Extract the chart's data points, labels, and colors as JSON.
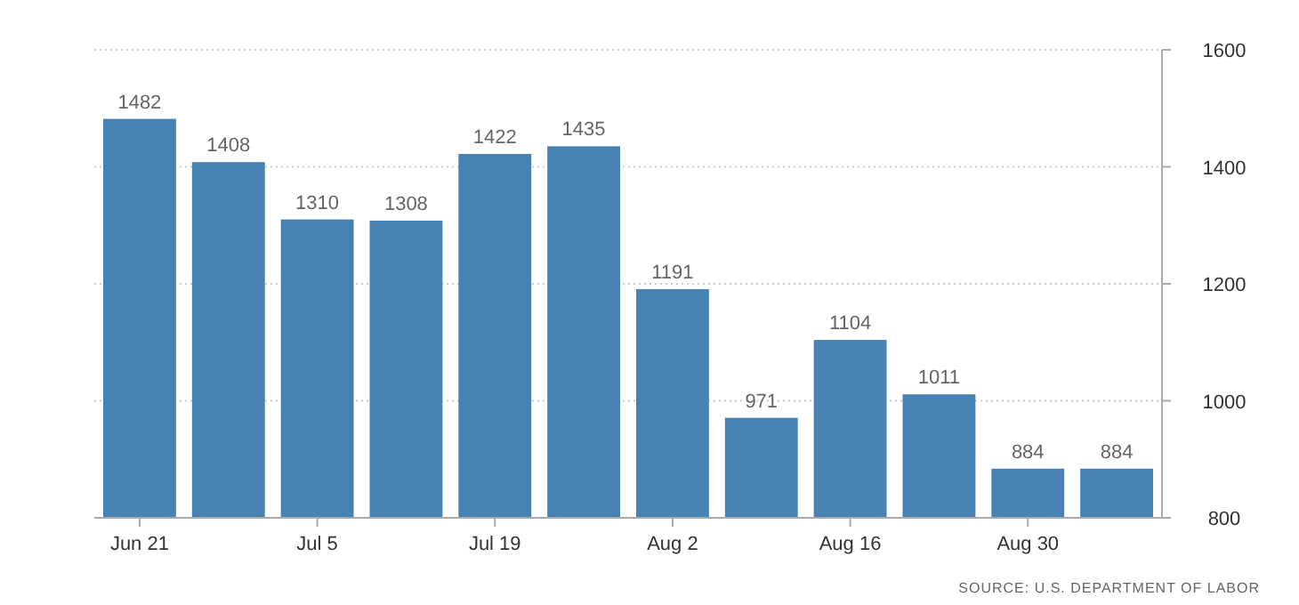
{
  "chart_data": {
    "type": "bar",
    "categories": [
      "Jun 21",
      null,
      "Jul 5",
      null,
      "Jul 19",
      null,
      "Aug 2",
      null,
      "Aug 16",
      null,
      "Aug 30",
      null
    ],
    "values": [
      1482,
      1408,
      1310,
      1308,
      1422,
      1435,
      1191,
      971,
      1104,
      1011,
      884,
      884
    ],
    "color": "#4682b4",
    "ylim": [
      800,
      1600
    ],
    "yticks": [
      800,
      1000,
      1200,
      1400,
      1600
    ],
    "grid": "y",
    "data_labels": true,
    "annotations": [
      "SOURCE: U.S. DEPARTMENT OF LABOR"
    ]
  }
}
